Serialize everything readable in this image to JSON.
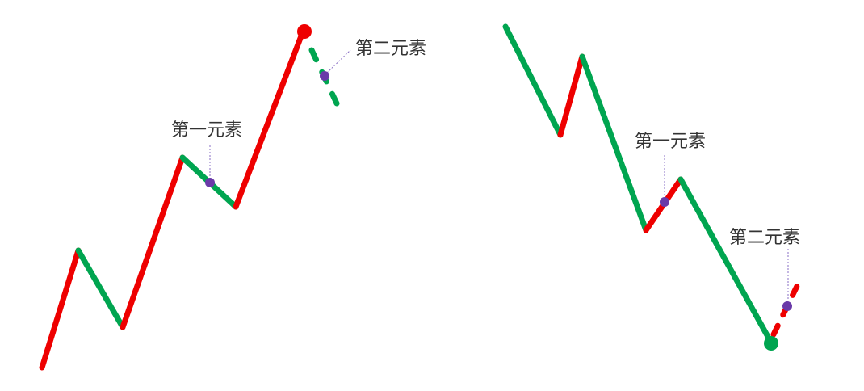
{
  "colors": {
    "up": "#ee0000",
    "down": "#00a550",
    "marker": "#6a3aa8",
    "leader": "#8a6fc4",
    "text": "#333333"
  },
  "labels": {
    "first_element": "第一元素",
    "second_element": "第二元素"
  }
}
